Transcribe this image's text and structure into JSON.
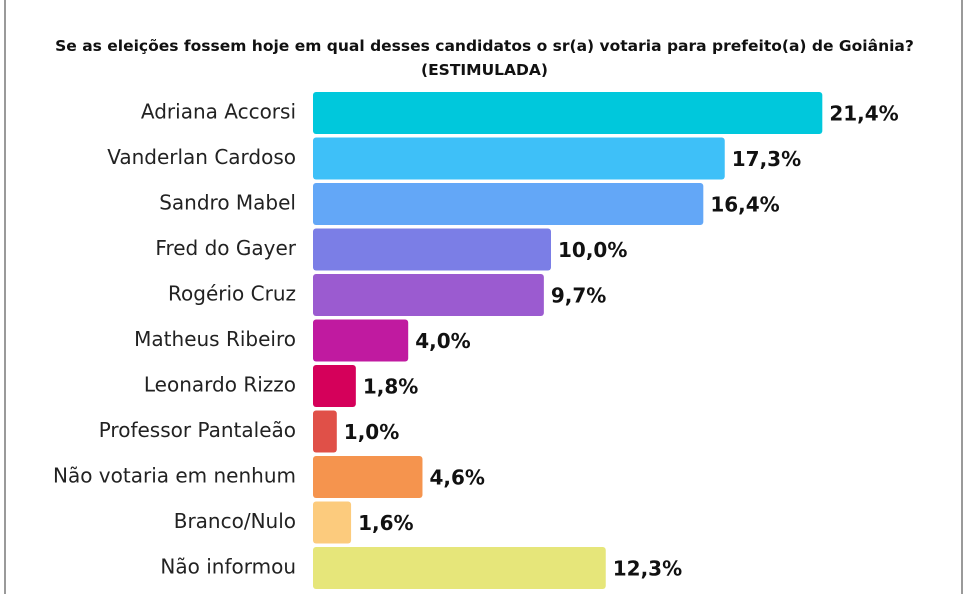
{
  "chart_data": {
    "type": "bar",
    "orientation": "horizontal",
    "title": "Se as eleições fossem hoje em qual desses candidatos o sr(a) votaria para prefeito(a) de Goiânia? (ESTIMULADA)",
    "categories": [
      "Adriana Accorsi",
      "Vanderlan Cardoso",
      "Sandro Mabel",
      "Fred do Gayer",
      "Rogério Cruz",
      "Matheus Ribeiro",
      "Leonardo Rizzo",
      "Professor Pantaleão",
      "Não votaria em nenhum",
      "Branco/Nulo",
      "Não informou"
    ],
    "values": [
      21.4,
      17.3,
      16.4,
      10.0,
      9.7,
      4.0,
      1.8,
      1.0,
      4.6,
      1.6,
      12.3
    ],
    "value_labels": [
      "21,4%",
      "17,3%",
      "16,4%",
      "10,0%",
      "9,7%",
      "4,0%",
      "1,8%",
      "1,0%",
      "4,6%",
      "1,6%",
      "12,3%"
    ],
    "colors": [
      "#00c8dc",
      "#3ec0f8",
      "#63a7f7",
      "#7b7ee6",
      "#9b5bd0",
      "#c01aa0",
      "#d5005a",
      "#e05048",
      "#f5944e",
      "#fccb7d",
      "#e6e67a"
    ]
  }
}
